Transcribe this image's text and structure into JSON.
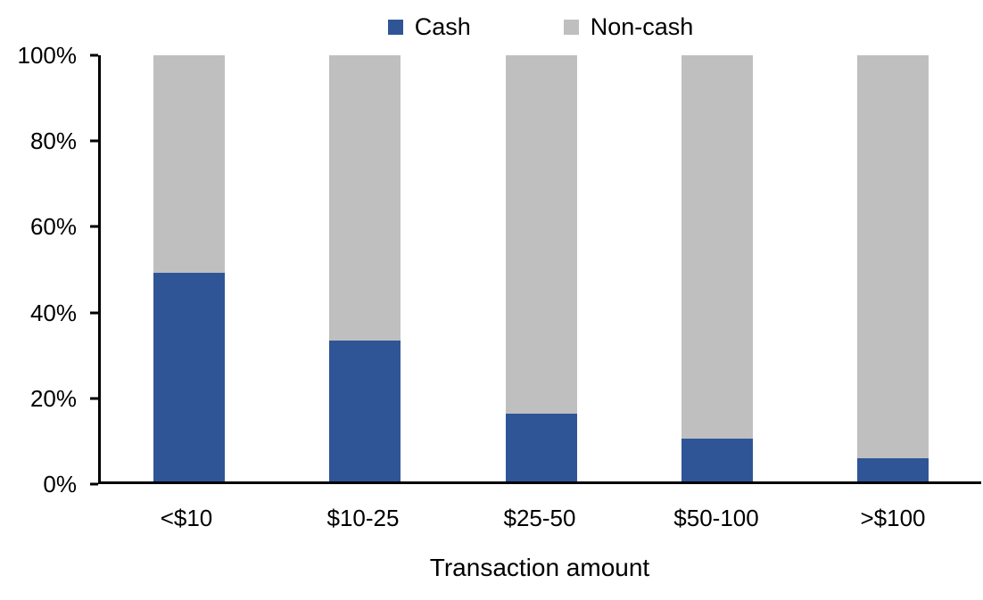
{
  "chart_data": {
    "type": "bar",
    "subtype": "stacked-100-percent",
    "title": "",
    "categories": [
      "<$10",
      "$10-25",
      "$25-50",
      "$50-100",
      ">$100"
    ],
    "series": [
      {
        "name": "Cash",
        "color": "#2F5597",
        "values": [
          49,
          33,
          16,
          10,
          5.5
        ]
      },
      {
        "name": "Non-cash",
        "color": "#BFBFBF",
        "values": [
          51,
          67,
          84,
          90,
          94.5
        ]
      }
    ],
    "xlabel": "Transaction amount",
    "ylabel": "",
    "ylim": [
      0,
      100
    ],
    "yticks": [
      "0%",
      "20%",
      "40%",
      "60%",
      "80%",
      "100%"
    ],
    "grid": false,
    "legend_position": "top-center",
    "axis_color": "#000000",
    "background_color": "#FFFFFF"
  }
}
